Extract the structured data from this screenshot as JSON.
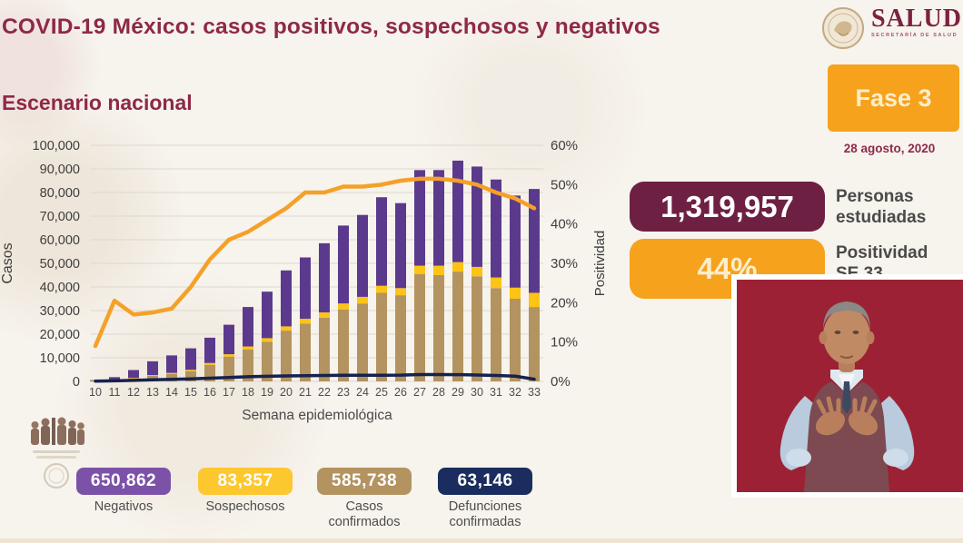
{
  "header": {
    "title": "COVID-19 México: casos positivos, sospechosos y negativos"
  },
  "logo": {
    "name": "SALUD",
    "subtitle": "SECRETARÍA DE SALUD"
  },
  "section_title": "Escenario nacional",
  "phase": {
    "label": "Fase 3",
    "date": "28 agosto, 2020",
    "color": "#f6a21c"
  },
  "stats": {
    "studied": {
      "value": "1,319,957",
      "label_line1": "Personas",
      "label_line2": "estudiadas",
      "color": "#6e2043"
    },
    "positivity": {
      "value": "44%",
      "label_line1": "Positividad",
      "label_line2": "SE 33",
      "color": "#f6a21c"
    }
  },
  "chart_data": {
    "type": "bar",
    "subtype": "stacked-bars-with-lines",
    "title": "Escenario nacional",
    "xlabel": "Semana epidemiológica",
    "ylabel_left": "Casos",
    "ylabel_right": "Positividad",
    "ylim_left": [
      0,
      100000
    ],
    "ylim_right_percent": [
      0,
      60
    ],
    "y_ticks_left": [
      "0",
      "10,000",
      "20,000",
      "30,000",
      "40,000",
      "50,000",
      "60,000",
      "70,000",
      "80,000",
      "90,000",
      "100,000"
    ],
    "y_ticks_right": [
      "0%",
      "10%",
      "20%",
      "30%",
      "40%",
      "50%",
      "60%"
    ],
    "grid": true,
    "categories": [
      10,
      11,
      12,
      13,
      14,
      15,
      16,
      17,
      18,
      19,
      20,
      21,
      22,
      23,
      24,
      25,
      26,
      27,
      28,
      29,
      30,
      31,
      32,
      33
    ],
    "stacked_bars": [
      {
        "name": "Casos confirmados",
        "color": "#b3935f",
        "values": [
          150,
          600,
          1300,
          2300,
          3100,
          4300,
          7000,
          10500,
          13500,
          16800,
          21500,
          24500,
          27000,
          30500,
          33000,
          37500,
          36500,
          45500,
          45000,
          46500,
          44500,
          39500,
          35000,
          31500
        ]
      },
      {
        "name": "Sospechosos",
        "color": "#fdc315",
        "values": [
          50,
          100,
          200,
          400,
          500,
          600,
          800,
          1000,
          1300,
          1500,
          1800,
          2000,
          2200,
          2500,
          2800,
          3000,
          3000,
          3500,
          4000,
          4000,
          4000,
          4500,
          4700,
          6000
        ]
      },
      {
        "name": "Negativos",
        "color": "#5b3a8e",
        "values": [
          300,
          1100,
          3300,
          5800,
          7400,
          9100,
          10700,
          12500,
          16700,
          19700,
          23700,
          26000,
          29300,
          33000,
          34700,
          37500,
          36000,
          40500,
          40500,
          43000,
          42500,
          41500,
          39000,
          44000
        ]
      }
    ],
    "lines": [
      {
        "name": "Defunciones confirmadas",
        "axis": "left",
        "color": "#15224d",
        "values": [
          100,
          250,
          450,
          650,
          850,
          1050,
          1350,
          1650,
          1950,
          2150,
          2300,
          2400,
          2500,
          2600,
          2600,
          2600,
          2650,
          2900,
          2900,
          2850,
          2700,
          2500,
          2200,
          900
        ]
      },
      {
        "name": "Positividad",
        "axis": "right_percent",
        "color": "#f5a028",
        "values": [
          9,
          20.5,
          17,
          17.5,
          18.5,
          24,
          31,
          36,
          38,
          41,
          44,
          48,
          48,
          49.5,
          49.5,
          50,
          51,
          51.5,
          51.5,
          51,
          50,
          48,
          46.5,
          44
        ]
      }
    ]
  },
  "legend": {
    "items": [
      {
        "value": "650,862",
        "label": "Negativos",
        "color": "#7c52a8"
      },
      {
        "value": "83,357",
        "label": "Sospechosos",
        "color": "#fdc72f"
      },
      {
        "value": "585,738",
        "label": "Casos confirmados",
        "color": "#b3935f"
      },
      {
        "value": "63,146",
        "label": "Defunciones confirmadas",
        "color": "#1b2d5e"
      }
    ]
  }
}
